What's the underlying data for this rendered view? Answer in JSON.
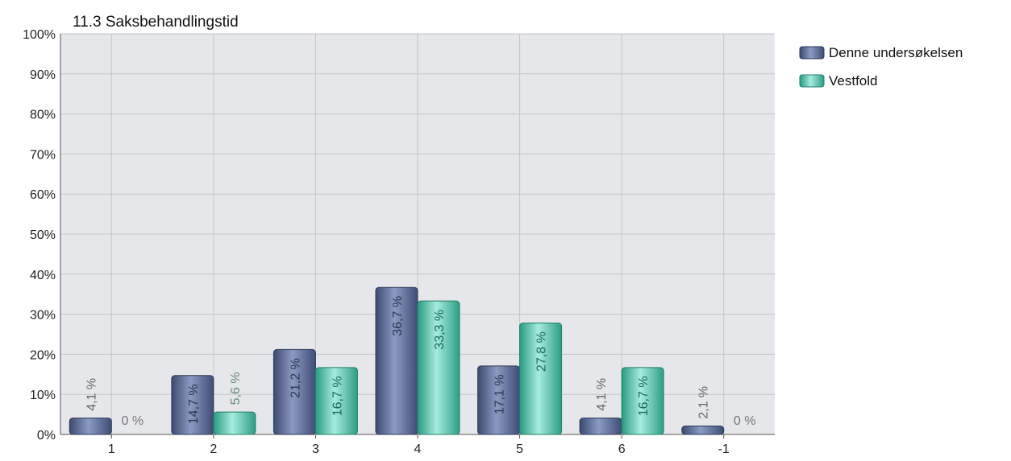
{
  "chart_data": {
    "type": "bar",
    "title": "11.3 Saksbehandlingstid",
    "categories": [
      "1",
      "2",
      "3",
      "4",
      "5",
      "6",
      "-1"
    ],
    "ylim": [
      0,
      100
    ],
    "yticks": [
      "0%",
      "10%",
      "20%",
      "30%",
      "40%",
      "50%",
      "60%",
      "70%",
      "80%",
      "90%",
      "100%"
    ],
    "grid": true,
    "legend_position": "right",
    "series": [
      {
        "name": "Denne undersøkelsen",
        "color": "#5a6a94",
        "values": [
          4.1,
          14.7,
          21.2,
          36.7,
          17.1,
          4.1,
          2.1
        ],
        "labels": [
          "4,1 %",
          "14,7 %",
          "21,2 %",
          "36,7 %",
          "17,1 %",
          "4,1 %",
          "2,1 %"
        ]
      },
      {
        "name": "Vestfold",
        "color": "#48c0a6",
        "values": [
          0,
          5.6,
          16.7,
          33.3,
          27.8,
          16.7,
          0
        ],
        "labels": [
          "0 %",
          "5,6 %",
          "16,7 %",
          "33,3 %",
          "27,8 %",
          "16,7 %",
          "0 %"
        ]
      }
    ]
  }
}
